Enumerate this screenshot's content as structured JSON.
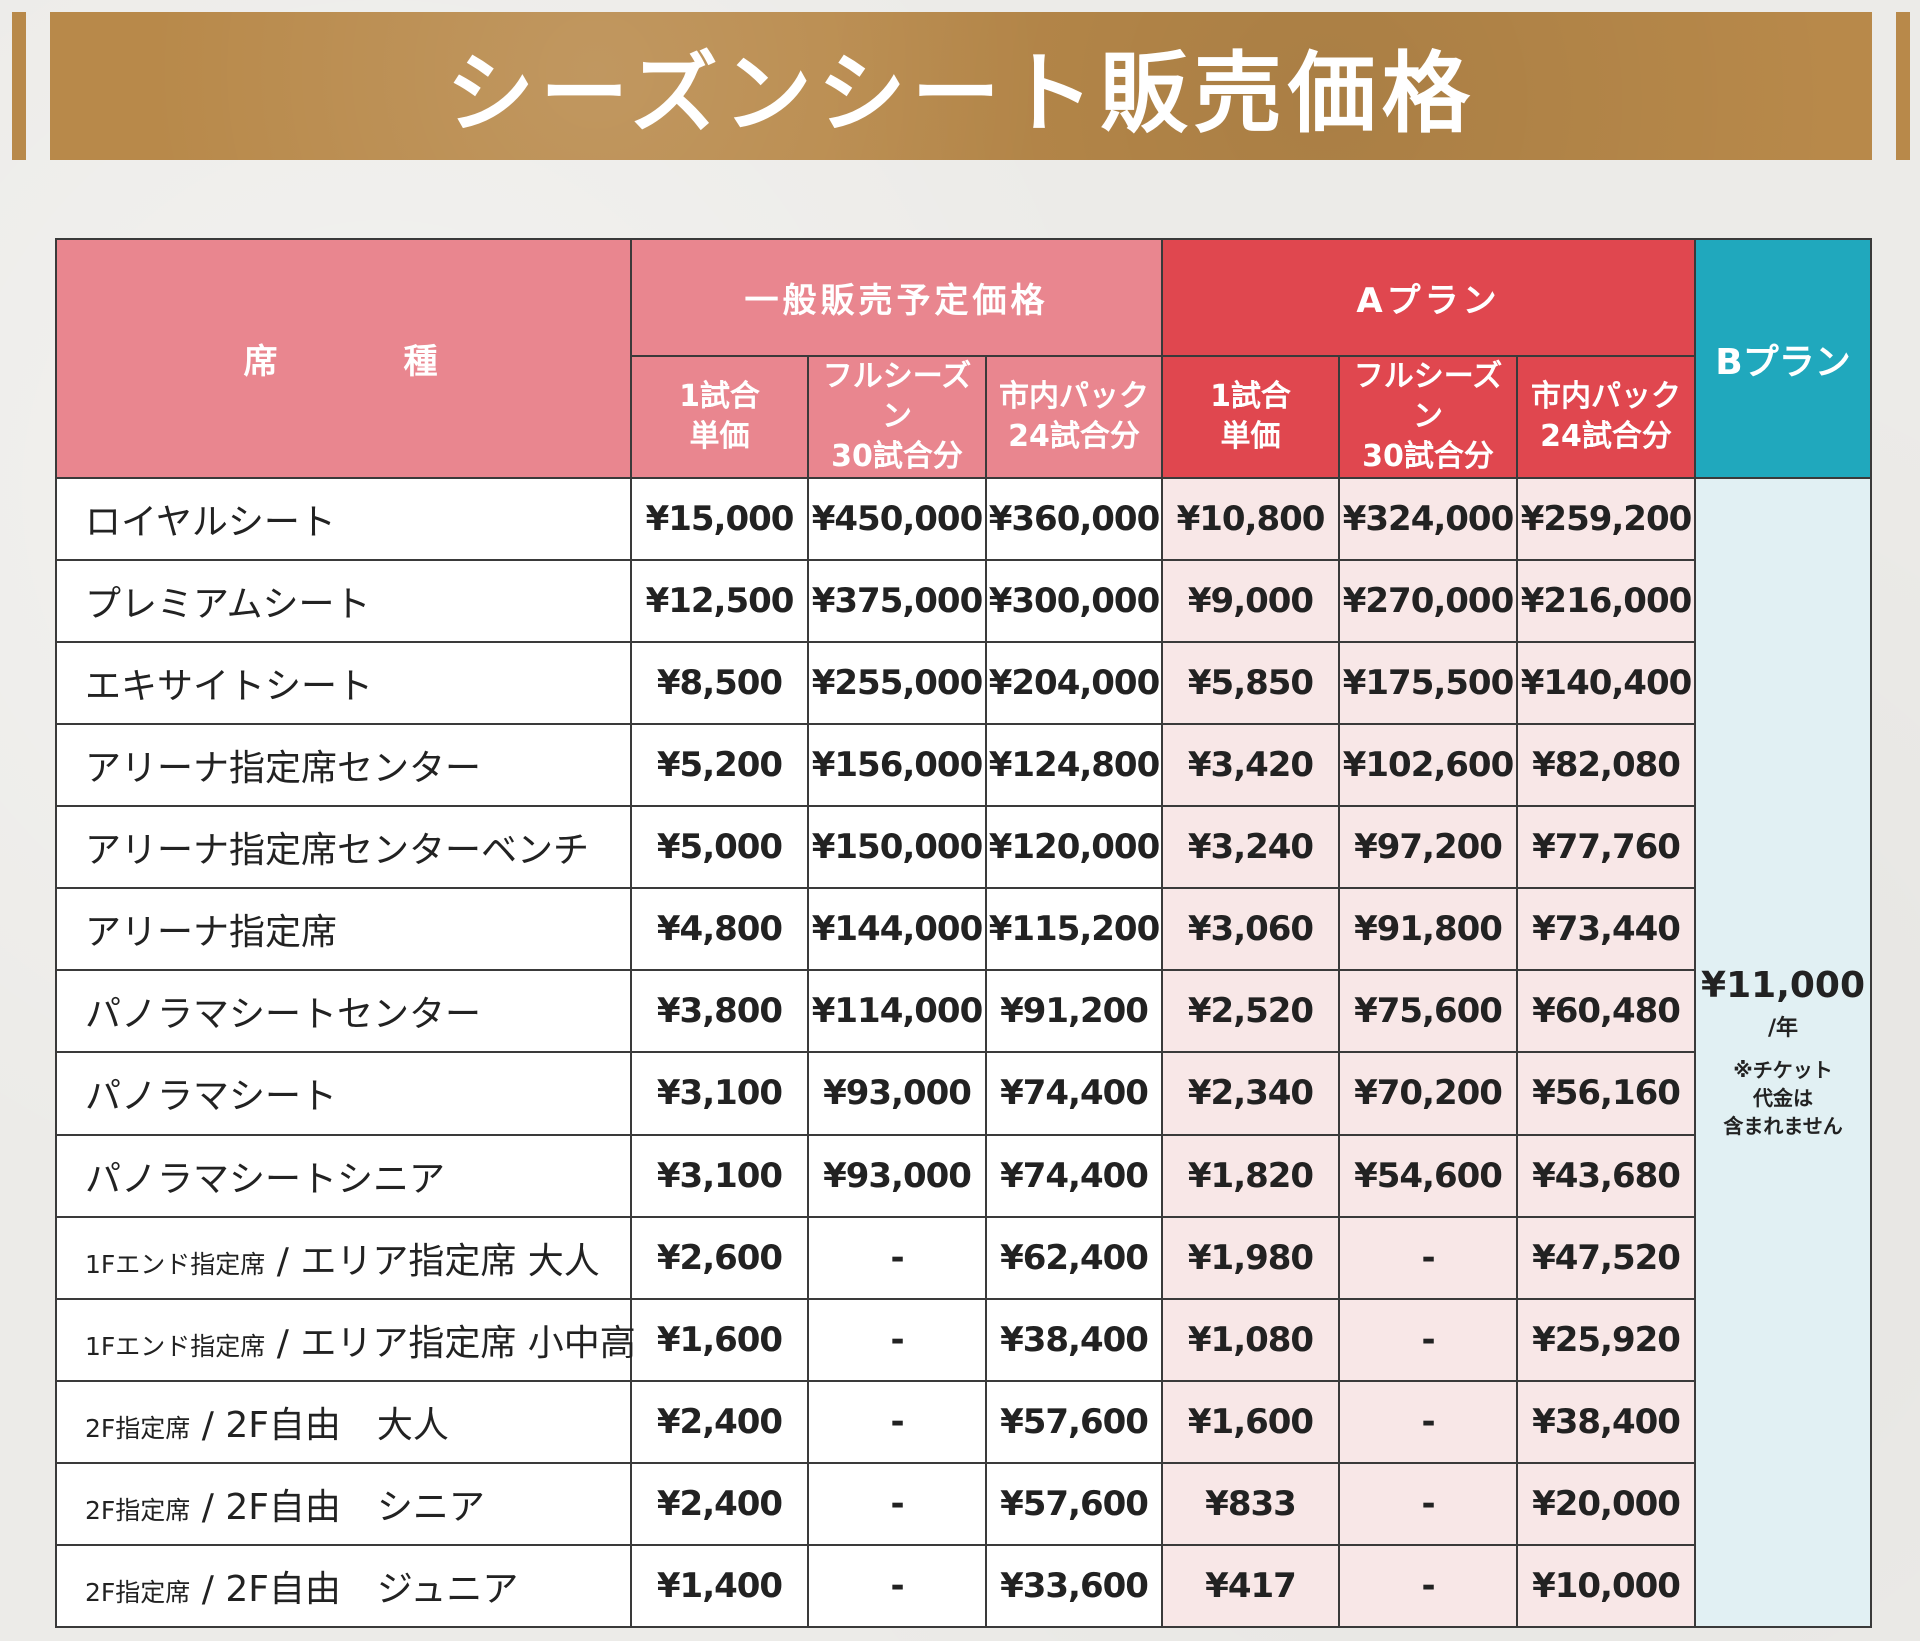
{
  "title": "シーズンシート販売価格",
  "header": {
    "seat_type": "席　　　種",
    "general_group": "一般販売予定価格",
    "a_plan": "Aプラン",
    "b_plan": "Bプラン",
    "general_cols": [
      {
        "line1": "1試合",
        "line2": "単価"
      },
      {
        "line1": "フルシーズン",
        "line2": "30試合分"
      },
      {
        "line1": "市内パック",
        "line2": "24試合分"
      }
    ],
    "a_cols": [
      {
        "line1": "1試合",
        "line2": "単価"
      },
      {
        "line1": "フルシーズン",
        "line2": "30試合分"
      },
      {
        "line1": "市内パック",
        "line2": "24試合分"
      }
    ]
  },
  "b_plan_cell": {
    "price": "¥11,000",
    "unit": "/年",
    "note1": "※チケット",
    "note2": "代金は",
    "note3": "含まれません"
  },
  "rows": [
    {
      "prefix": "",
      "name": "ロイヤルシート",
      "g1": "¥15,000",
      "g2": "¥450,000",
      "g3": "¥360,000",
      "a1": "¥10,800",
      "a2": "¥324,000",
      "a3": "¥259,200"
    },
    {
      "prefix": "",
      "name": "プレミアムシート",
      "g1": "¥12,500",
      "g2": "¥375,000",
      "g3": "¥300,000",
      "a1": "¥9,000",
      "a2": "¥270,000",
      "a3": "¥216,000"
    },
    {
      "prefix": "",
      "name": "エキサイトシート",
      "g1": "¥8,500",
      "g2": "¥255,000",
      "g3": "¥204,000",
      "a1": "¥5,850",
      "a2": "¥175,500",
      "a3": "¥140,400"
    },
    {
      "prefix": "",
      "name": "アリーナ指定席センター",
      "g1": "¥5,200",
      "g2": "¥156,000",
      "g3": "¥124,800",
      "a1": "¥3,420",
      "a2": "¥102,600",
      "a3": "¥82,080"
    },
    {
      "prefix": "",
      "name": "アリーナ指定席センターベンチ",
      "g1": "¥5,000",
      "g2": "¥150,000",
      "g3": "¥120,000",
      "a1": "¥3,240",
      "a2": "¥97,200",
      "a3": "¥77,760"
    },
    {
      "prefix": "",
      "name": "アリーナ指定席",
      "g1": "¥4,800",
      "g2": "¥144,000",
      "g3": "¥115,200",
      "a1": "¥3,060",
      "a2": "¥91,800",
      "a3": "¥73,440"
    },
    {
      "prefix": "",
      "name": "パノラマシートセンター",
      "g1": "¥3,800",
      "g2": "¥114,000",
      "g3": "¥91,200",
      "a1": "¥2,520",
      "a2": "¥75,600",
      "a3": "¥60,480"
    },
    {
      "prefix": "",
      "name": "パノラマシート",
      "g1": "¥3,100",
      "g2": "¥93,000",
      "g3": "¥74,400",
      "a1": "¥2,340",
      "a2": "¥70,200",
      "a3": "¥56,160"
    },
    {
      "prefix": "",
      "name": "パノラマシートシニア",
      "g1": "¥3,100",
      "g2": "¥93,000",
      "g3": "¥74,400",
      "a1": "¥1,820",
      "a2": "¥54,600",
      "a3": "¥43,680"
    },
    {
      "prefix": "1Fエンド指定席",
      "name": " / エリア指定席 大人",
      "g1": "¥2,600",
      "g2": "-",
      "g3": "¥62,400",
      "a1": "¥1,980",
      "a2": "-",
      "a3": "¥47,520"
    },
    {
      "prefix": "1Fエンド指定席",
      "name": " / エリア指定席 小中高",
      "g1": "¥1,600",
      "g2": "-",
      "g3": "¥38,400",
      "a1": "¥1,080",
      "a2": "-",
      "a3": "¥25,920"
    },
    {
      "prefix": "2F指定席",
      "name": " / 2F自由　大人",
      "g1": "¥2,400",
      "g2": "-",
      "g3": "¥57,600",
      "a1": "¥1,600",
      "a2": "-",
      "a3": "¥38,400"
    },
    {
      "prefix": "2F指定席",
      "name": " / 2F自由　シニア",
      "g1": "¥2,400",
      "g2": "-",
      "g3": "¥57,600",
      "a1": "¥833",
      "a2": "-",
      "a3": "¥20,000"
    },
    {
      "prefix": "2F指定席",
      "name": " / 2F自由　ジュニア",
      "g1": "¥1,400",
      "g2": "-",
      "g3": "¥33,600",
      "a1": "¥417",
      "a2": "-",
      "a3": "¥10,000"
    }
  ]
}
